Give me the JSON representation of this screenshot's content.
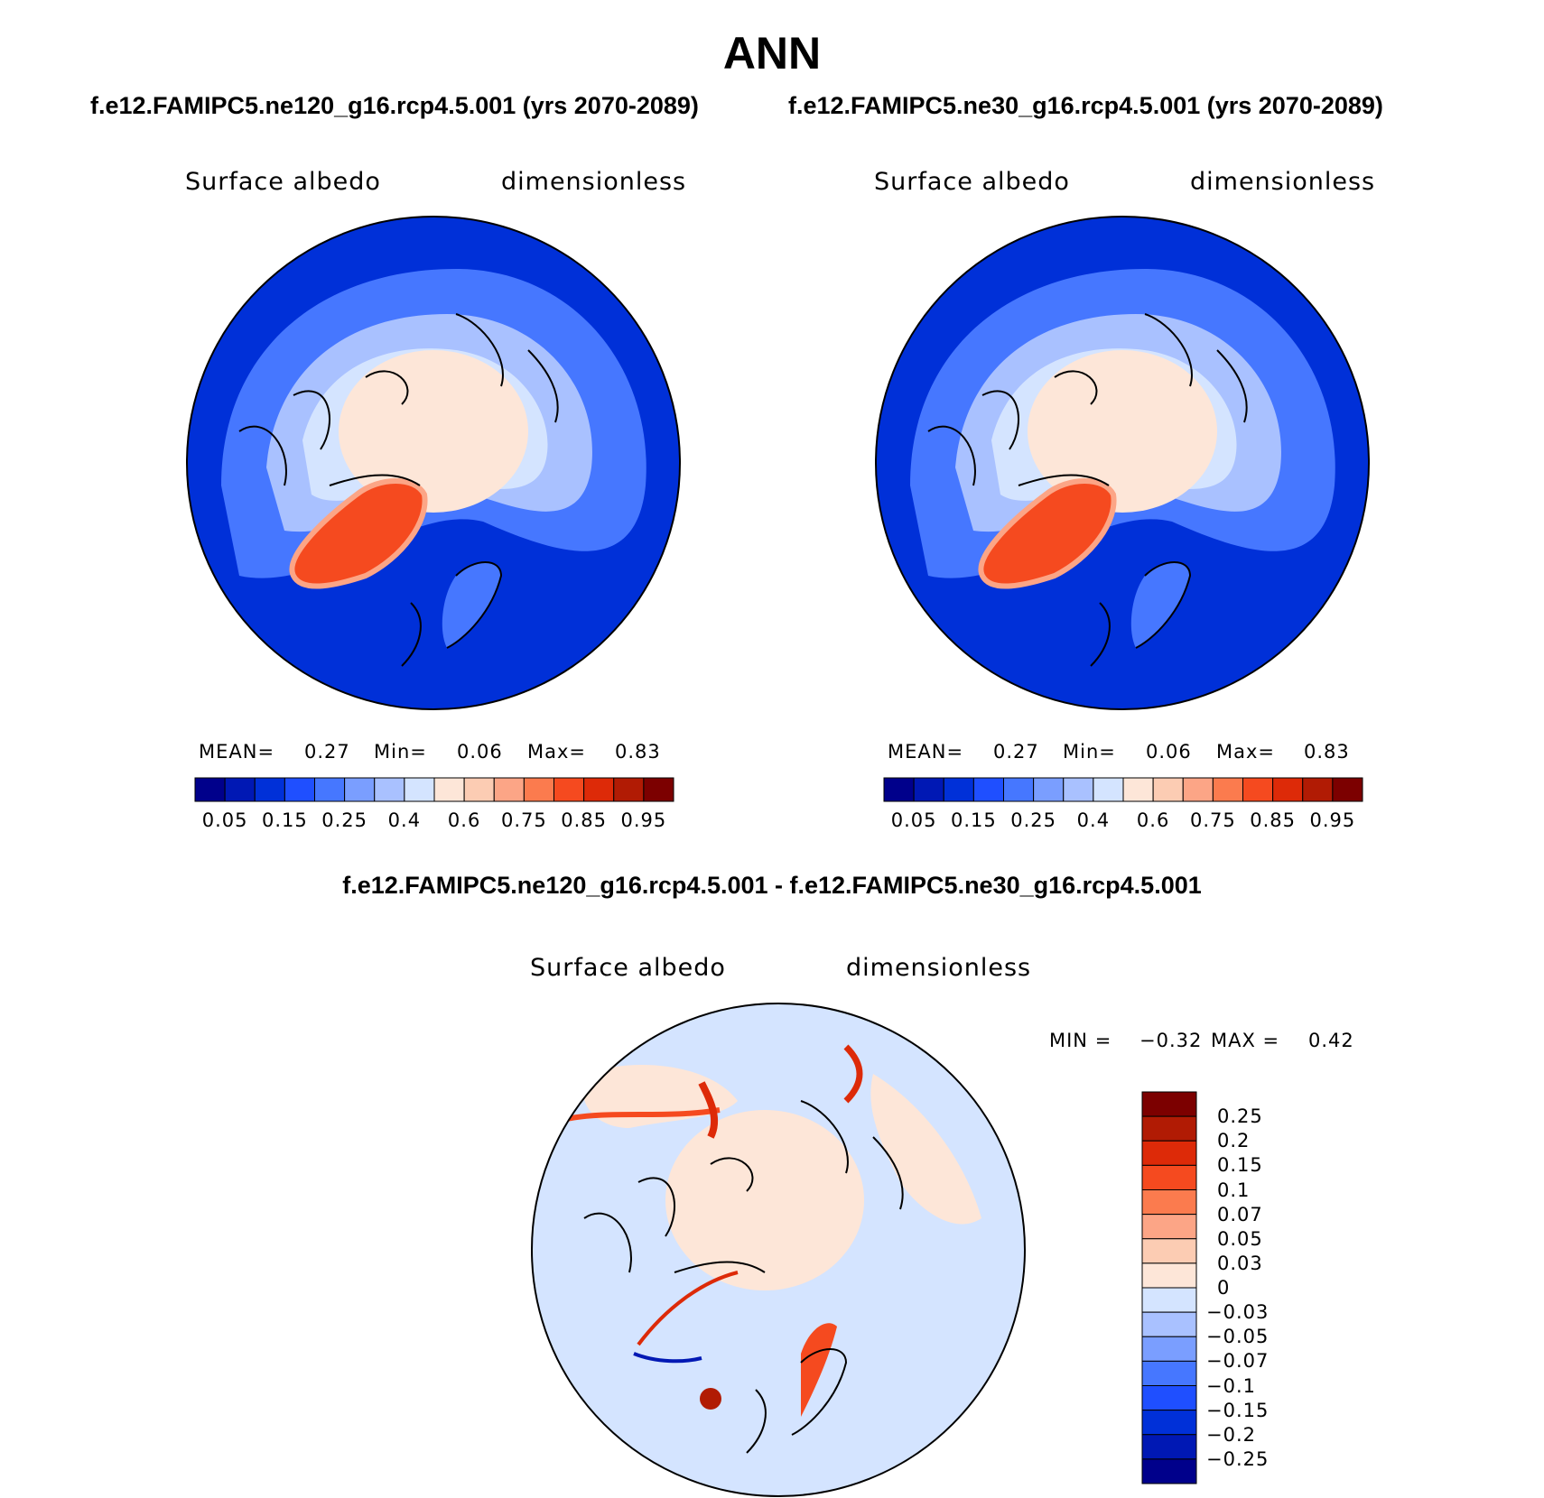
{
  "title": "ANN",
  "panels": [
    {
      "case": "f.e12.FAMIPC5.ne120_g16.rcp4.5.001 (yrs 2070-2089)",
      "variable": "Surface albedo",
      "units": "dimensionless",
      "stats": {
        "mean_label": "MEAN=",
        "mean": "0.27",
        "min_label": "Min=",
        "min": "0.06",
        "max_label": "Max=",
        "max": "0.83"
      }
    },
    {
      "case": "f.e12.FAMIPC5.ne30_g16.rcp4.5.001 (yrs 2070-2089)",
      "variable": "Surface albedo",
      "units": "dimensionless",
      "stats": {
        "mean_label": "MEAN=",
        "mean": "0.27",
        "min_label": "Min=",
        "min": "0.06",
        "max_label": "Max=",
        "max": "0.83"
      }
    }
  ],
  "abs_colorbar": {
    "labels": [
      "0.05",
      "0.15",
      "0.25",
      "0.4",
      "0.6",
      "0.75",
      "0.85",
      "0.95"
    ],
    "colors": [
      "#00008b",
      "#0018b4",
      "#0030d8",
      "#1f4fff",
      "#4677ff",
      "#7a9eff",
      "#a9c1ff",
      "#d4e4ff",
      "#fde6d8",
      "#fcccb3",
      "#fca586",
      "#fb7b4e",
      "#f54a1f",
      "#dd2a08",
      "#b11b04",
      "#7c0000"
    ]
  },
  "diff": {
    "title": "f.e12.FAMIPC5.ne120_g16.rcp4.5.001 - f.e12.FAMIPC5.ne30_g16.rcp4.5.001",
    "variable": "Surface albedo",
    "units": "dimensionless",
    "stats": {
      "min_label": "MIN =",
      "min": "−0.32",
      "max_label": "MAX =",
      "max": "0.42"
    },
    "colorbar": {
      "labels": [
        "0.25",
        "0.2",
        "0.15",
        "0.1",
        "0.07",
        "0.05",
        "0.03",
        "0",
        "−0.03",
        "−0.05",
        "−0.07",
        "−0.1",
        "−0.15",
        "−0.2",
        "−0.25"
      ],
      "colors": [
        "#7c0000",
        "#b11b04",
        "#dd2a08",
        "#f54a1f",
        "#fb7b4e",
        "#fca586",
        "#fcccb3",
        "#fde6d8",
        "#d4e4ff",
        "#a9c1ff",
        "#7a9eff",
        "#4677ff",
        "#1f4fff",
        "#0030d8",
        "#0018b4",
        "#00008b"
      ]
    }
  },
  "colors": {
    "ocean_low": "#0030d8",
    "ice": "#fde6d8",
    "greenland": "#f54a1f",
    "diff_background": "#d4e4ff",
    "coastline": "#000000"
  }
}
